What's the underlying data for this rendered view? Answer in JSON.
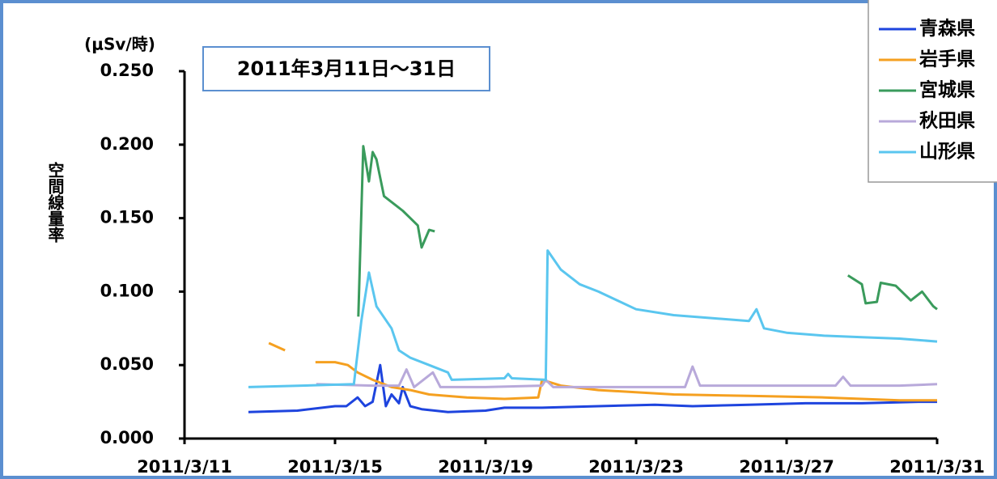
{
  "chart_data": {
    "type": "line",
    "title": "2011年3月11日～31日",
    "y_unit": "(μSv/時)",
    "y_label": "空間線量率",
    "xlim": [
      11,
      31
    ],
    "xticks": [
      {
        "value": 11,
        "label": "2011/3/11"
      },
      {
        "value": 15,
        "label": "2011/3/15"
      },
      {
        "value": 19,
        "label": "2011/3/19"
      },
      {
        "value": 23,
        "label": "2011/3/23"
      },
      {
        "value": 27,
        "label": "2011/3/27"
      },
      {
        "value": 31,
        "label": "2011/3/31"
      }
    ],
    "ylim": [
      0,
      0.25
    ],
    "yticks": [
      {
        "value": 0,
        "label": "0.000"
      },
      {
        "value": 0.05,
        "label": "0.050"
      },
      {
        "value": 0.1,
        "label": "0.100"
      },
      {
        "value": 0.15,
        "label": "0.150"
      },
      {
        "value": 0.2,
        "label": "0.200"
      },
      {
        "value": 0.25,
        "label": "0.250"
      }
    ],
    "grid": false,
    "legend": "top-right",
    "series": [
      {
        "name": "青森県",
        "color": "#1e44de",
        "x": [
          12.7,
          14,
          15,
          15.3,
          15.6,
          15.8,
          16.0,
          16.2,
          16.35,
          16.5,
          16.7,
          16.8,
          17.0,
          17.3,
          18,
          19,
          19.5,
          20.5,
          22,
          23.5,
          24.5,
          26,
          27.5,
          29,
          30.5,
          31
        ],
        "values": [
          0.018,
          0.019,
          0.022,
          0.022,
          0.028,
          0.022,
          0.025,
          0.05,
          0.022,
          0.03,
          0.024,
          0.035,
          0.022,
          0.02,
          0.018,
          0.019,
          0.021,
          0.021,
          0.022,
          0.023,
          0.022,
          0.023,
          0.024,
          0.024,
          0.025,
          0.025
        ]
      },
      {
        "name": "岩手県",
        "color": "#f5a020",
        "x": [
          13.24,
          13.67,
          null,
          14.48,
          15.0,
          15.34,
          15.6,
          16.0,
          16.5,
          17.0,
          17.5,
          18.5,
          19.5,
          20.4,
          20.5,
          21,
          22,
          24,
          26,
          28,
          30,
          31
        ],
        "values": [
          0.065,
          0.06,
          null,
          0.052,
          0.052,
          0.05,
          0.045,
          0.04,
          0.035,
          0.033,
          0.03,
          0.028,
          0.027,
          0.028,
          0.04,
          0.036,
          0.033,
          0.03,
          0.029,
          0.028,
          0.026,
          0.026
        ]
      },
      {
        "name": "宮城県",
        "color": "#3a9b5c",
        "x": [
          15.62,
          15.75,
          15.9,
          16.0,
          16.1,
          16.3,
          16.8,
          17.0,
          17.2,
          17.3,
          17.5,
          17.65,
          null,
          28.63,
          29.0,
          29.1,
          29.4,
          29.5,
          29.9,
          30.3,
          30.6,
          30.9,
          31.0
        ],
        "values": [
          0.083,
          0.199,
          0.175,
          0.195,
          0.19,
          0.165,
          0.155,
          0.15,
          0.145,
          0.13,
          0.142,
          0.141,
          null,
          0.111,
          0.105,
          0.092,
          0.093,
          0.106,
          0.104,
          0.094,
          0.1,
          0.09,
          0.088
        ]
      },
      {
        "name": "秋田県",
        "color": "#b8a9da",
        "x": [
          14.5,
          16,
          16.7,
          16.9,
          17.1,
          17.6,
          17.8,
          19,
          20.5,
          20.6,
          20.8,
          23,
          24.3,
          24.5,
          24.7,
          26,
          28.3,
          28.5,
          28.7,
          30,
          31
        ],
        "values": [
          0.037,
          0.036,
          0.036,
          0.047,
          0.035,
          0.045,
          0.035,
          0.035,
          0.036,
          0.04,
          0.035,
          0.035,
          0.035,
          0.049,
          0.036,
          0.036,
          0.036,
          0.042,
          0.036,
          0.036,
          0.037
        ]
      },
      {
        "name": "山形県",
        "color": "#5ac6ef",
        "x": [
          12.7,
          15.5,
          15.7,
          15.9,
          16.1,
          16.5,
          16.7,
          17,
          17.5,
          18,
          18.1,
          19.5,
          19.6,
          19.7,
          20.6,
          20.65,
          21,
          21.5,
          22,
          23,
          24,
          25,
          26,
          26.2,
          26.4,
          27,
          28,
          29,
          30,
          31
        ],
        "values": [
          0.035,
          0.037,
          0.08,
          0.113,
          0.09,
          0.075,
          0.06,
          0.055,
          0.05,
          0.045,
          0.04,
          0.041,
          0.044,
          0.041,
          0.04,
          0.128,
          0.115,
          0.105,
          0.1,
          0.088,
          0.084,
          0.082,
          0.08,
          0.088,
          0.075,
          0.072,
          0.07,
          0.069,
          0.068,
          0.066
        ]
      }
    ]
  }
}
